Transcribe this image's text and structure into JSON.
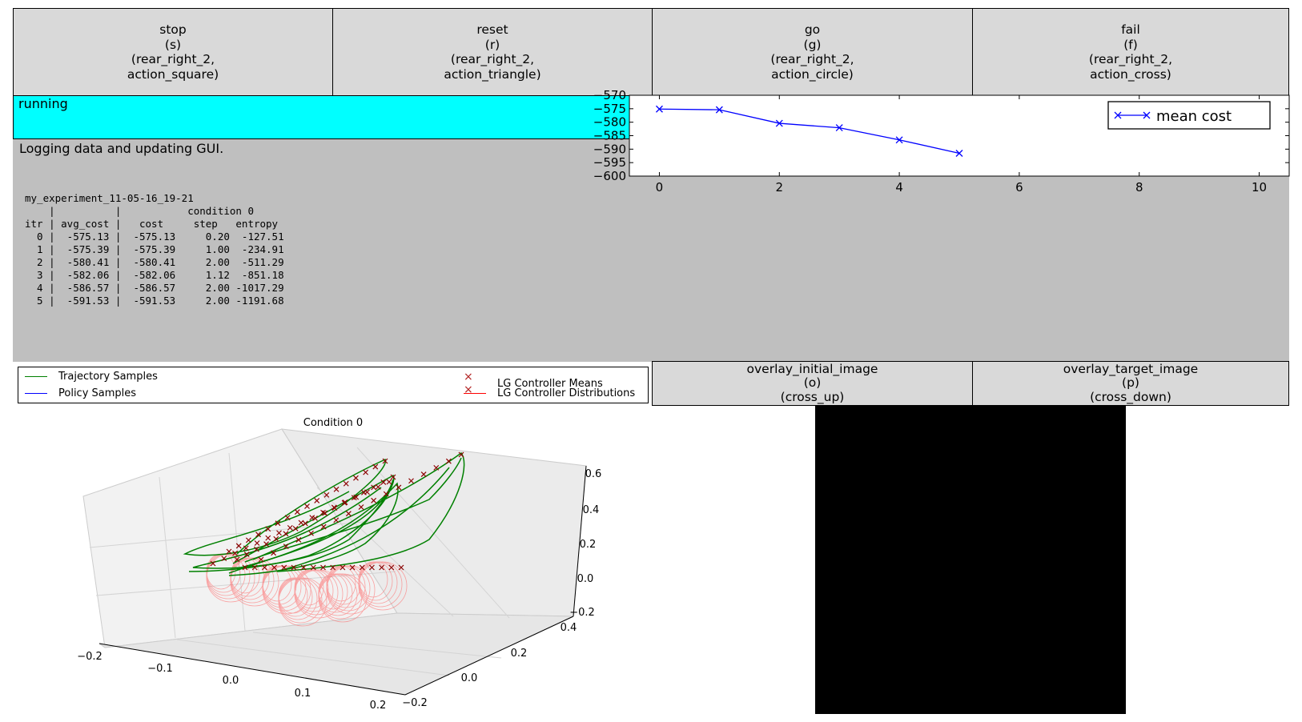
{
  "buttons": [
    {
      "name": "stop",
      "label": "stop\n(s)\n(rear_right_2,\naction_square)"
    },
    {
      "name": "reset",
      "label": "reset\n(r)\n(rear_right_2,\naction_triangle)"
    },
    {
      "name": "go",
      "label": "go\n(g)\n(rear_right_2,\naction_circle)"
    },
    {
      "name": "fail",
      "label": "fail\n(f)\n(rear_right_2,\naction_cross)"
    }
  ],
  "overlay_buttons": [
    {
      "name": "overlay-initial-image",
      "label": "overlay_initial_image\n(o)\n(cross_up)"
    },
    {
      "name": "overlay-target-image",
      "label": "overlay_target_image\n(p)\n(cross_down)"
    }
  ],
  "status": {
    "text": "running",
    "color": "#00ffff"
  },
  "message": "Logging data and updating GUI.",
  "log": {
    "experiment": "my_experiment_11-05-16_19-21",
    "header1": "    |          |           condition 0",
    "header2": "itr | avg_cost |   cost     step   entropy",
    "rows": [
      "  0 |  -575.13 |  -575.13     0.20  -127.51",
      "  1 |  -575.39 |  -575.39     1.00  -234.91",
      "  2 |  -580.41 |  -580.41     2.00  -511.29",
      "  3 |  -582.06 |  -582.06     1.12  -851.18",
      "  4 |  -586.57 |  -586.57     2.00 -1017.29",
      "  5 |  -591.53 |  -591.53     2.00 -1191.68"
    ]
  },
  "legend": {
    "trajectory": "Trajectory Samples",
    "policy": "Policy Samples",
    "means": "LG Controller Means",
    "distributions": "LG Controller Distributions"
  },
  "plot3d": {
    "title": "Condition 0",
    "x_ticks": [
      "−0.2",
      "−0.1",
      "0.0",
      "0.1",
      "0.2"
    ],
    "y_ticks": [
      "−0.2",
      "0.0",
      "0.2",
      "0.4"
    ],
    "z_ticks": [
      "0.6",
      "0.4",
      "0.2",
      "0.0",
      "−0.2"
    ]
  },
  "chart_data": {
    "type": "line",
    "x": [
      0,
      1,
      2,
      3,
      4,
      5
    ],
    "series": [
      {
        "name": "mean cost",
        "values": [
          -575.13,
          -575.39,
          -580.41,
          -582.06,
          -586.57,
          -591.53
        ],
        "color": "#0000ff",
        "marker": "x"
      }
    ],
    "xlim": [
      -0.5,
      10.5
    ],
    "ylim": [
      -600,
      -570
    ],
    "x_ticks": [
      0,
      2,
      4,
      6,
      8,
      10
    ],
    "y_ticks": [
      -570,
      -575,
      -580,
      -585,
      -590,
      -595,
      -600
    ],
    "title": "",
    "xlabel": "",
    "ylabel": "",
    "legend": "top-right",
    "grid": false
  },
  "colors": {
    "trajectory": "#008000",
    "policy": "#0000ff",
    "means": "#8b0000",
    "distributions": "#ff0000",
    "panel": "#d9d9d9",
    "msg_bg": "#bfbfbf"
  }
}
